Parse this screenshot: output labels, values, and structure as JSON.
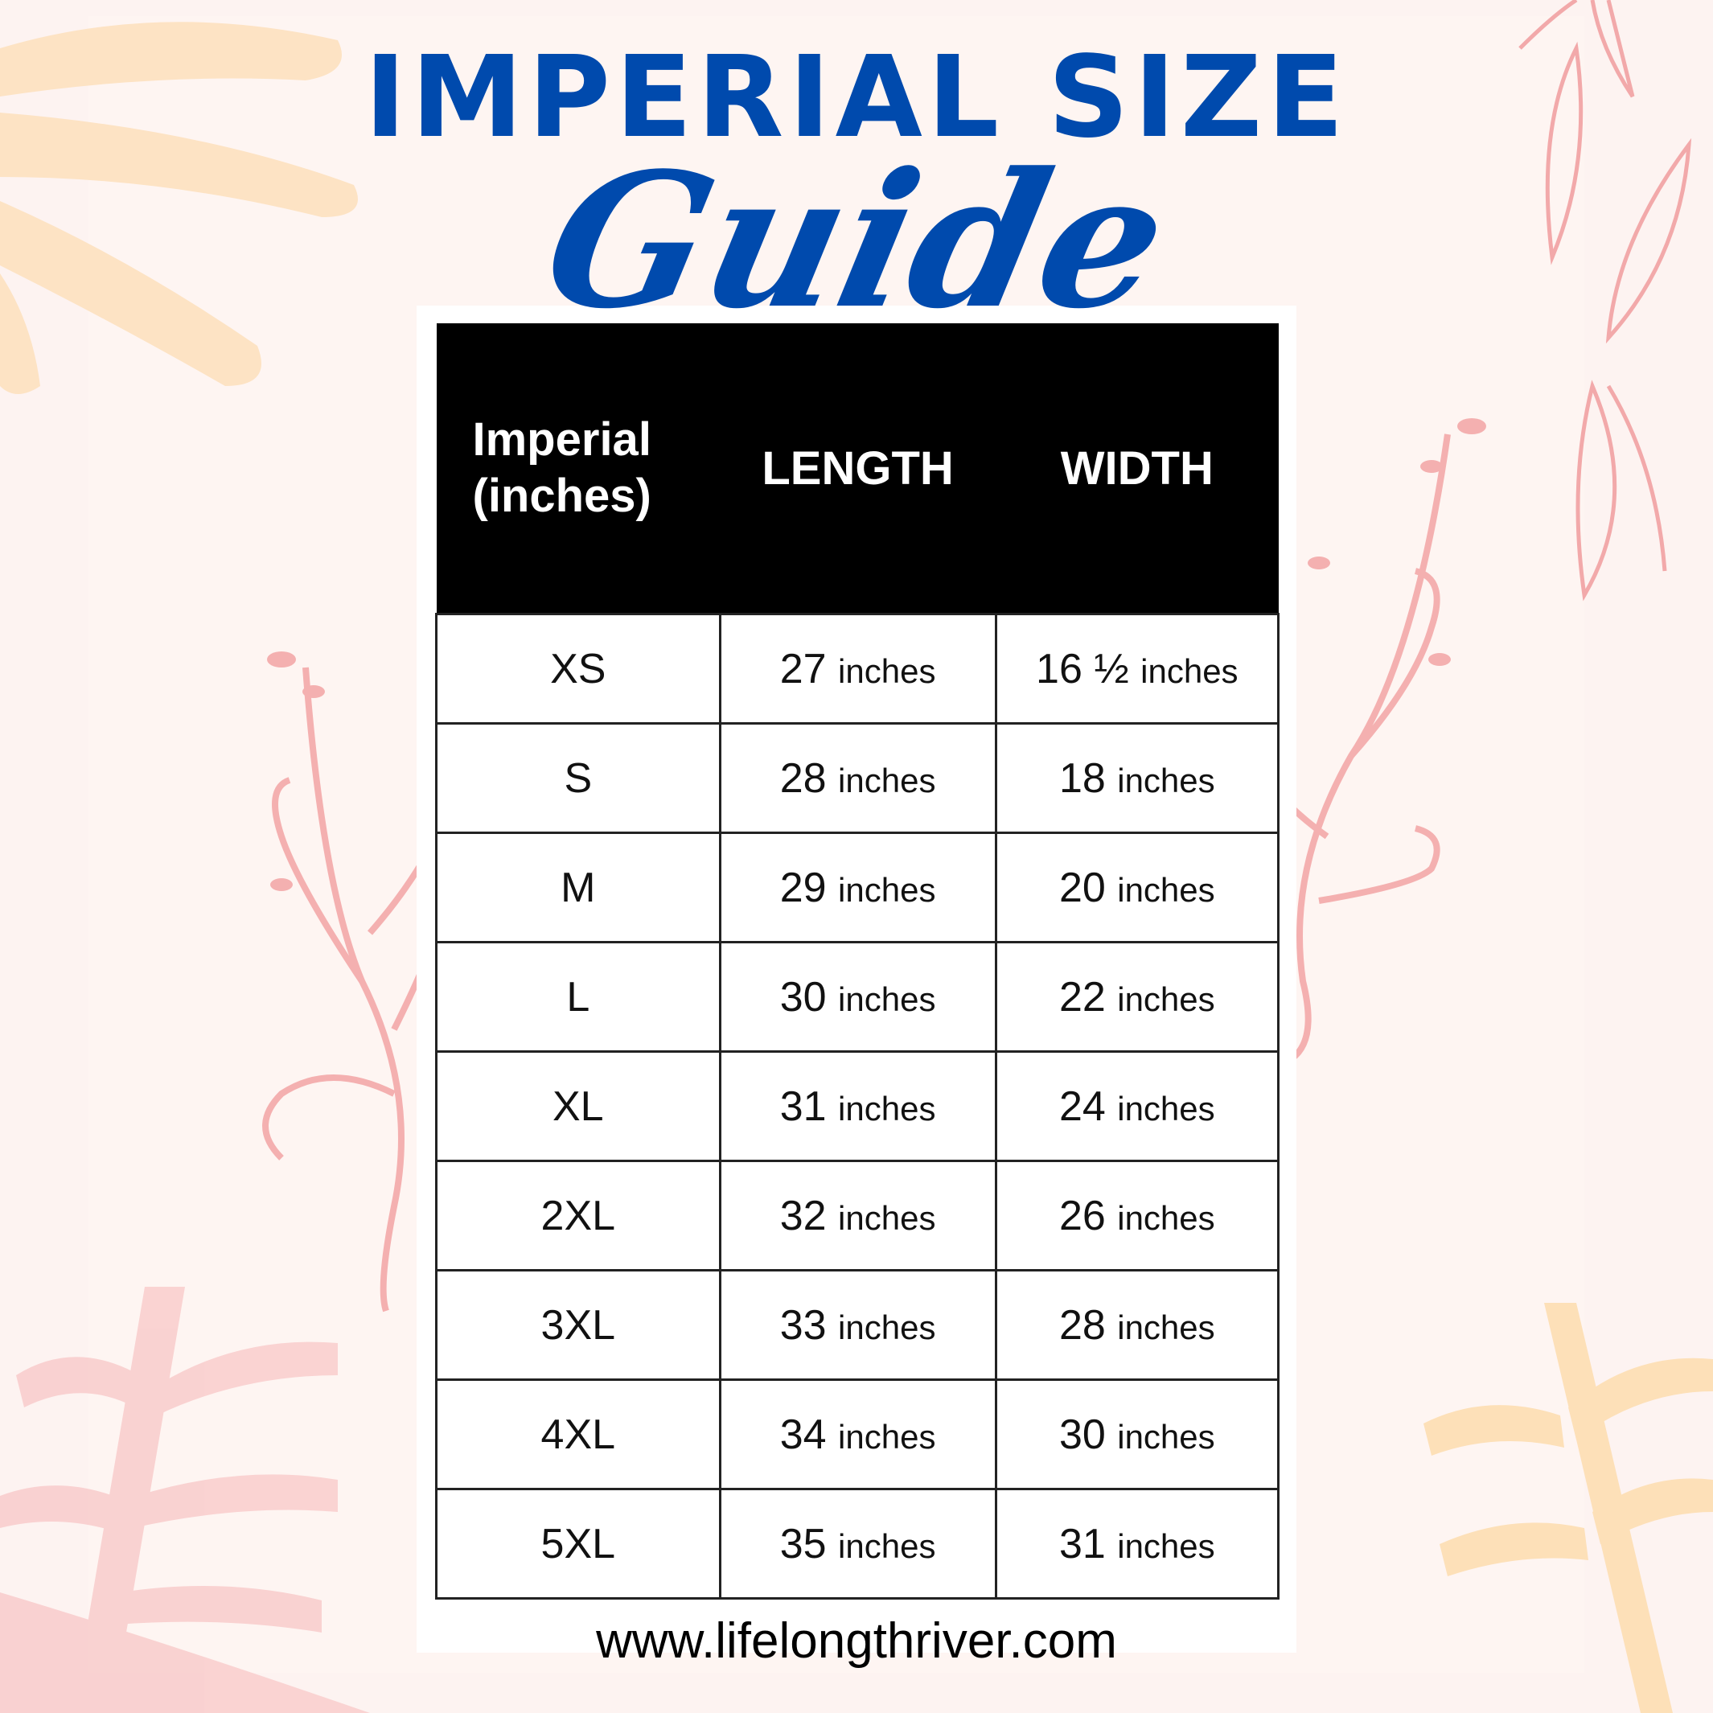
{
  "title": "IMPERIAL SIZE",
  "subtitle": "Guide",
  "table": {
    "headers": [
      "Imperial (inches)",
      "LENGTH",
      "WIDTH"
    ],
    "rows": [
      {
        "size": "XS",
        "length": "27",
        "width": "16 ½"
      },
      {
        "size": "S",
        "length": "28",
        "width": "18"
      },
      {
        "size": "M",
        "length": "29",
        "width": "20"
      },
      {
        "size": "L",
        "length": "30",
        "width": "22"
      },
      {
        "size": "XL",
        "length": "31",
        "width": "24"
      },
      {
        "size": "2XL",
        "length": "32",
        "width": "26"
      },
      {
        "size": "3XL",
        "length": "33",
        "width": "28"
      },
      {
        "size": "4XL",
        "length": "34",
        "width": "30"
      },
      {
        "size": "5XL",
        "length": "35",
        "width": "31"
      }
    ],
    "unit": "inches"
  },
  "website": "www.lifelongthriver.com",
  "colors": {
    "title": "#004aad",
    "header_bg": "#000000",
    "background": "#fdf3f1",
    "leaf_peach": "#fde3c4",
    "leaf_pink": "#f6b7b7"
  }
}
